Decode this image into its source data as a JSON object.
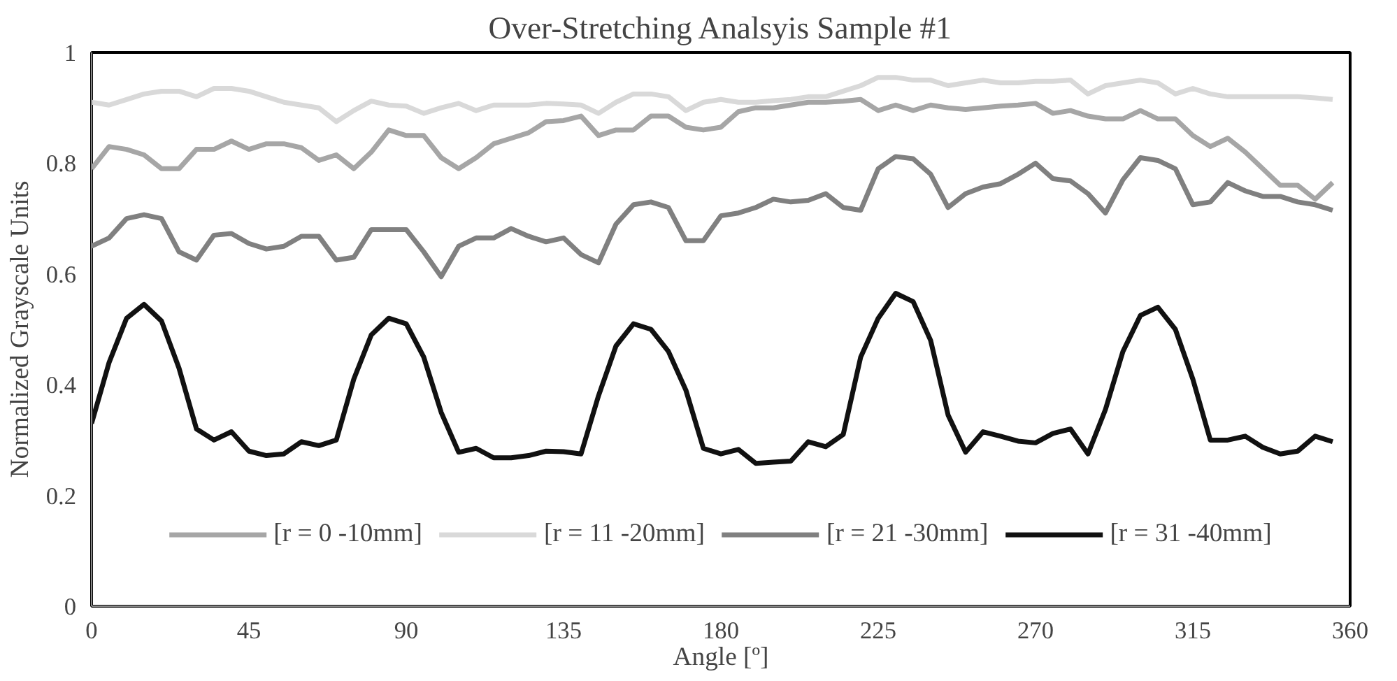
{
  "chart_data": {
    "type": "line",
    "title": "Over-Stretching Analsyis Sample #1",
    "xlabel": "Angle [º]",
    "ylabel": "Normalized Grayscale Units",
    "x": [
      0,
      5,
      10,
      15,
      20,
      25,
      30,
      35,
      40,
      45,
      50,
      55,
      60,
      65,
      70,
      75,
      80,
      85,
      90,
      95,
      100,
      105,
      110,
      115,
      120,
      125,
      130,
      135,
      140,
      145,
      150,
      155,
      160,
      165,
      170,
      175,
      180,
      185,
      190,
      195,
      200,
      205,
      210,
      215,
      220,
      225,
      230,
      235,
      240,
      245,
      250,
      255,
      260,
      265,
      270,
      275,
      280,
      285,
      290,
      295,
      300,
      305,
      310,
      315,
      320,
      325,
      330,
      335,
      340,
      345,
      350,
      355
    ],
    "xlim": [
      0,
      360
    ],
    "xticks": [
      0,
      45,
      90,
      135,
      180,
      225,
      270,
      315,
      360
    ],
    "ylim": [
      0,
      1
    ],
    "yticks": [
      0,
      0.2,
      0.4,
      0.6,
      0.8,
      1
    ],
    "grid": false,
    "legend": "bottom",
    "marker": "none",
    "line_style": "solid",
    "series": [
      {
        "name": "[r = 0 -10mm]",
        "color": "#a6a6a6",
        "values": [
          0.79,
          0.83,
          0.825,
          0.815,
          0.79,
          0.79,
          0.825,
          0.825,
          0.84,
          0.825,
          0.835,
          0.835,
          0.828,
          0.805,
          0.815,
          0.79,
          0.82,
          0.86,
          0.85,
          0.85,
          0.81,
          0.79,
          0.81,
          0.835,
          0.845,
          0.855,
          0.875,
          0.877,
          0.885,
          0.85,
          0.86,
          0.86,
          0.885,
          0.885,
          0.865,
          0.86,
          0.865,
          0.893,
          0.9,
          0.9,
          0.905,
          0.91,
          0.91,
          0.912,
          0.915,
          0.895,
          0.905,
          0.895,
          0.905,
          0.9,
          0.897,
          0.9,
          0.903,
          0.905,
          0.908,
          0.89,
          0.895,
          0.885,
          0.88,
          0.88,
          0.895,
          0.88,
          0.88,
          0.85,
          0.83,
          0.845,
          0.82,
          0.79,
          0.76,
          0.76,
          0.735,
          0.765
        ]
      },
      {
        "name": "[r = 11 -20mm]",
        "color": "#d9d9d9",
        "values": [
          0.91,
          0.905,
          0.915,
          0.925,
          0.93,
          0.93,
          0.92,
          0.935,
          0.935,
          0.93,
          0.92,
          0.91,
          0.905,
          0.9,
          0.875,
          0.895,
          0.912,
          0.905,
          0.903,
          0.89,
          0.9,
          0.908,
          0.895,
          0.905,
          0.905,
          0.905,
          0.908,
          0.907,
          0.905,
          0.89,
          0.91,
          0.925,
          0.925,
          0.92,
          0.895,
          0.91,
          0.915,
          0.91,
          0.91,
          0.913,
          0.915,
          0.92,
          0.92,
          0.93,
          0.94,
          0.955,
          0.955,
          0.95,
          0.95,
          0.94,
          0.945,
          0.95,
          0.945,
          0.945,
          0.948,
          0.948,
          0.95,
          0.925,
          0.94,
          0.945,
          0.95,
          0.945,
          0.925,
          0.935,
          0.925,
          0.92,
          0.92,
          0.92,
          0.92,
          0.92,
          0.918,
          0.915
        ]
      },
      {
        "name": "[r = 21 -30mm]",
        "color": "#808080",
        "values": [
          0.65,
          0.665,
          0.7,
          0.707,
          0.7,
          0.64,
          0.625,
          0.67,
          0.673,
          0.655,
          0.645,
          0.65,
          0.668,
          0.668,
          0.625,
          0.63,
          0.68,
          0.68,
          0.68,
          0.64,
          0.595,
          0.65,
          0.665,
          0.665,
          0.682,
          0.668,
          0.658,
          0.665,
          0.635,
          0.62,
          0.69,
          0.725,
          0.73,
          0.72,
          0.66,
          0.66,
          0.705,
          0.71,
          0.72,
          0.735,
          0.73,
          0.733,
          0.745,
          0.72,
          0.715,
          0.79,
          0.812,
          0.808,
          0.78,
          0.72,
          0.745,
          0.757,
          0.763,
          0.78,
          0.8,
          0.772,
          0.768,
          0.745,
          0.71,
          0.77,
          0.81,
          0.805,
          0.79,
          0.725,
          0.73,
          0.765,
          0.75,
          0.74,
          0.74,
          0.73,
          0.725,
          0.715
        ]
      },
      {
        "name": "[r = 31 -40mm]",
        "color": "#111111",
        "values": [
          0.33,
          0.44,
          0.52,
          0.545,
          0.515,
          0.43,
          0.32,
          0.3,
          0.315,
          0.28,
          0.272,
          0.275,
          0.297,
          0.29,
          0.3,
          0.41,
          0.49,
          0.52,
          0.51,
          0.45,
          0.35,
          0.278,
          0.285,
          0.268,
          0.268,
          0.272,
          0.28,
          0.279,
          0.275,
          0.38,
          0.47,
          0.51,
          0.5,
          0.46,
          0.39,
          0.285,
          0.275,
          0.283,
          0.258,
          0.26,
          0.262,
          0.297,
          0.288,
          0.31,
          0.45,
          0.52,
          0.565,
          0.55,
          0.48,
          0.345,
          0.278,
          0.315,
          0.307,
          0.298,
          0.295,
          0.312,
          0.32,
          0.275,
          0.355,
          0.46,
          0.525,
          0.54,
          0.5,
          0.41,
          0.3,
          0.3,
          0.307,
          0.287,
          0.275,
          0.28,
          0.307,
          0.297
        ]
      }
    ]
  }
}
